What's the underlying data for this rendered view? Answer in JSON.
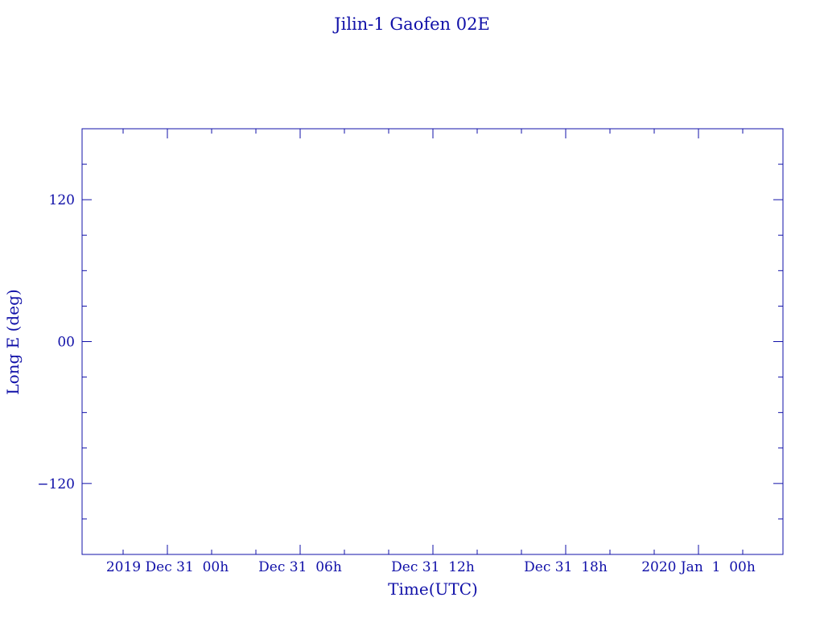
{
  "colors": {
    "axis": "#1010a8",
    "background": "#ffffff"
  },
  "chart_data": {
    "type": "line",
    "title": "Jilin-1 Gaofen 02E",
    "xlabel": "Time(UTC)",
    "ylabel": "Long E (deg)",
    "ylim": [
      -180,
      180
    ],
    "xlim": [
      "2019-12-30T20:10",
      "2020-01-01T03:50"
    ],
    "grid": false,
    "series": [],
    "y_ticks": [
      {
        "value": 120,
        "label": "120"
      },
      {
        "value": 0,
        "label": "00"
      },
      {
        "value": -120,
        "label": "-120"
      }
    ],
    "y_minor_step": 30,
    "x_ticks": [
      {
        "hour": 0,
        "label": "2019 Dec 31  00h"
      },
      {
        "hour": 6,
        "label": "Dec 31  06h"
      },
      {
        "hour": 12,
        "label": "Dec 31  12h"
      },
      {
        "hour": 18,
        "label": "Dec 31  18h"
      },
      {
        "hour": 24,
        "label": "2020 Jan  1  00h"
      }
    ],
    "x_minor_step_hours": 2
  }
}
